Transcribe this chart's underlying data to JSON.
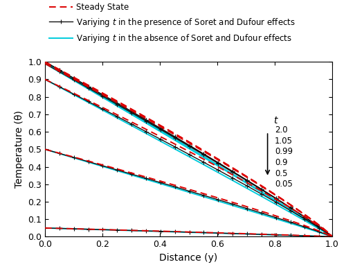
{
  "title": "",
  "xlabel": "Distance (y)",
  "ylabel": "Temperature (θ)",
  "xlim": [
    0,
    1.0
  ],
  "ylim": [
    0,
    1.0
  ],
  "t_values": [
    2.0,
    1.05,
    0.99,
    0.9,
    0.5,
    0.05
  ],
  "t_label": "t",
  "legend_steady": "Steady State",
  "legend_with": "Variying $t$ in the presence of Soret and Dufour effects",
  "legend_without": "Variying $t$ in the absence of Soret and Dufour effects",
  "color_steady": "#dd0000",
  "color_with": "#111111",
  "color_without": "#00ccdd",
  "n_points": 200,
  "marker_every": 10,
  "marker_size": 5,
  "lw_steady": 1.4,
  "lw_with": 1.0,
  "lw_without": 1.4
}
